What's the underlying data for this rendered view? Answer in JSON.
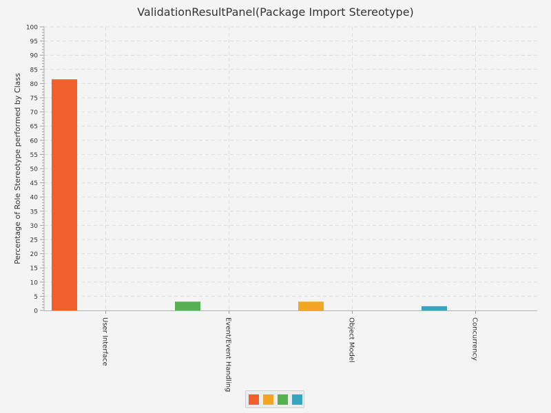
{
  "chart_data": {
    "type": "bar",
    "title": "ValidationResultPanel(Package Import Stereotype)",
    "ylabel": "Percentage of Role Stereotype performed by Class",
    "xlabel": "",
    "categories": [
      "User Interface",
      "Event/Event Handling",
      "Object Model",
      "Concurrency"
    ],
    "ylim": [
      0,
      100
    ],
    "major_tick_step": 5,
    "minor_tick_step": 1,
    "grid": true,
    "series": [
      {
        "values": [
          81.5,
          0,
          0,
          0
        ],
        "color": "#f0602d"
      },
      {
        "values": [
          0,
          0,
          3.1,
          0
        ],
        "color": "#f3a623"
      },
      {
        "values": [
          0,
          3.1,
          0,
          0
        ],
        "color": "#55b04f"
      },
      {
        "values": [
          0,
          0,
          0,
          1.5
        ],
        "color": "#3aa3c0"
      }
    ],
    "legend": {
      "position": "bottom-center",
      "colors": [
        "#f0602d",
        "#f3a623",
        "#55b04f",
        "#3aa3c0"
      ]
    }
  }
}
